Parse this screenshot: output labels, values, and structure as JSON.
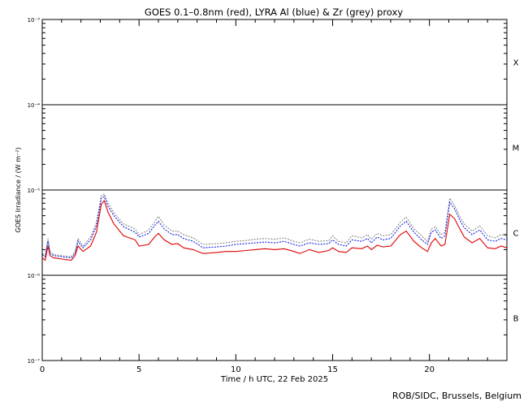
{
  "chart_data": {
    "type": "line",
    "title": "GOES 0.1–0.8nm (red), LYRA Al (blue) & Zr (grey) proxy",
    "xlabel": "Time / h UTC, 22 Feb 2025",
    "ylabel": "GOES Irradiance / (W m⁻²)",
    "xlim": [
      0,
      24
    ],
    "ylim": [
      1e-07,
      0.001
    ],
    "yscale": "log",
    "x_ticks": [
      0,
      5,
      10,
      15,
      20
    ],
    "y_ticks": [
      {
        "value": 0.001,
        "label": "10⁻³"
      },
      {
        "value": 0.0001,
        "label": "10⁻⁴"
      },
      {
        "value": 1e-05,
        "label": "10⁻⁵"
      },
      {
        "value": 1e-06,
        "label": "10⁻⁶"
      },
      {
        "value": 1e-07,
        "label": "10⁻⁷"
      }
    ],
    "flare_classes": [
      {
        "label": "X",
        "value": 0.000316
      },
      {
        "label": "M",
        "value": 3.16e-05
      },
      {
        "label": "C",
        "value": 3.16e-06
      },
      {
        "label": "B",
        "value": 3.16e-07
      }
    ],
    "class_boundaries": [
      0.0001,
      1e-05,
      1e-06
    ],
    "series": [
      {
        "name": "GOES 0.1–0.8nm",
        "color": "#e00000",
        "x": [
          0,
          0.15,
          0.3,
          0.4,
          0.6,
          1,
          1.5,
          1.7,
          1.85,
          2.1,
          2.5,
          2.8,
          3.05,
          3.2,
          3.4,
          3.7,
          4.2,
          4.8,
          5,
          5.5,
          5.8,
          6,
          6.3,
          6.7,
          7,
          7.3,
          7.8,
          8.3,
          9,
          9.5,
          10,
          10.5,
          11,
          11.5,
          12,
          12.5,
          13,
          13.3,
          13.8,
          14.3,
          14.8,
          15,
          15.3,
          15.7,
          16,
          16.5,
          16.8,
          17,
          17.3,
          17.6,
          18,
          18.5,
          18.8,
          19.2,
          19.6,
          19.9,
          20.1,
          20.3,
          20.6,
          20.8,
          21.05,
          21.3,
          21.6,
          21.8,
          22.2,
          22.6,
          23,
          23.4,
          23.7,
          24
        ],
        "y": [
          1.6e-06,
          1.5e-06,
          2.2e-06,
          1.7e-06,
          1.6e-06,
          1.55e-06,
          1.5e-06,
          1.7e-06,
          2.2e-06,
          1.9e-06,
          2.2e-06,
          3.2e-06,
          6.8e-06,
          7.5e-06,
          5.5e-06,
          4e-06,
          2.9e-06,
          2.6e-06,
          2.2e-06,
          2.3e-06,
          2.8e-06,
          3.1e-06,
          2.6e-06,
          2.3e-06,
          2.35e-06,
          2.1e-06,
          2e-06,
          1.8e-06,
          1.85e-06,
          1.9e-06,
          1.9e-06,
          1.95e-06,
          2e-06,
          2.05e-06,
          2e-06,
          2.05e-06,
          1.9e-06,
          1.8e-06,
          2e-06,
          1.85e-06,
          1.95e-06,
          2.1e-06,
          1.9e-06,
          1.85e-06,
          2.1e-06,
          2.05e-06,
          2.2e-06,
          2e-06,
          2.25e-06,
          2.15e-06,
          2.2e-06,
          3e-06,
          3.3e-06,
          2.5e-06,
          2.1e-06,
          1.9e-06,
          2.4e-06,
          2.7e-06,
          2.2e-06,
          2.3e-06,
          5.2e-06,
          4.6e-06,
          3.4e-06,
          2.8e-06,
          2.4e-06,
          2.7e-06,
          2.1e-06,
          2.05e-06,
          2.2e-06,
          2.1e-06
        ]
      },
      {
        "name": "LYRA Al",
        "color": "#1020e0",
        "x": [
          0,
          0.15,
          0.3,
          0.4,
          0.6,
          1,
          1.5,
          1.7,
          1.85,
          2.1,
          2.5,
          2.8,
          3.05,
          3.2,
          3.4,
          3.7,
          4.2,
          4.8,
          5,
          5.5,
          5.8,
          6,
          6.3,
          6.7,
          7,
          7.3,
          7.8,
          8.3,
          9,
          9.5,
          10,
          10.5,
          11,
          11.5,
          12,
          12.5,
          13,
          13.3,
          13.8,
          14.3,
          14.8,
          15,
          15.3,
          15.7,
          16,
          16.5,
          16.8,
          17,
          17.3,
          17.6,
          18,
          18.5,
          18.8,
          19.2,
          19.6,
          19.9,
          20.1,
          20.3,
          20.6,
          20.8,
          21.05,
          21.3,
          21.6,
          21.8,
          22.2,
          22.6,
          23,
          23.4,
          23.7,
          24
        ],
        "y": [
          1.75e-06,
          1.65e-06,
          2.5e-06,
          1.8e-06,
          1.7e-06,
          1.65e-06,
          1.6e-06,
          1.8e-06,
          2.5e-06,
          2.1e-06,
          2.6e-06,
          3.8e-06,
          8e-06,
          8.4e-06,
          6.4e-06,
          5e-06,
          3.7e-06,
          3.2e-06,
          2.8e-06,
          3.1e-06,
          3.8e-06,
          4.3e-06,
          3.5e-06,
          3e-06,
          3e-06,
          2.7e-06,
          2.5e-06,
          2.1e-06,
          2.15e-06,
          2.2e-06,
          2.3e-06,
          2.35e-06,
          2.4e-06,
          2.45e-06,
          2.4e-06,
          2.5e-06,
          2.3e-06,
          2.2e-06,
          2.4e-06,
          2.3e-06,
          2.35e-06,
          2.6e-06,
          2.3e-06,
          2.2e-06,
          2.6e-06,
          2.5e-06,
          2.7e-06,
          2.4e-06,
          2.8e-06,
          2.6e-06,
          2.7e-06,
          3.8e-06,
          4.3e-06,
          3.2e-06,
          2.6e-06,
          2.3e-06,
          3.2e-06,
          3.4e-06,
          2.7e-06,
          2.9e-06,
          7.2e-06,
          6e-06,
          4.3e-06,
          3.6e-06,
          3e-06,
          3.4e-06,
          2.6e-06,
          2.5e-06,
          2.7e-06,
          2.6e-06
        ]
      },
      {
        "name": "LYRA Zr",
        "color": "#888888",
        "x": [
          0,
          0.15,
          0.3,
          0.4,
          0.6,
          1,
          1.5,
          1.7,
          1.85,
          2.1,
          2.5,
          2.8,
          3.05,
          3.2,
          3.4,
          3.7,
          4.2,
          4.8,
          5,
          5.5,
          5.8,
          6,
          6.3,
          6.7,
          7,
          7.3,
          7.8,
          8.3,
          9,
          9.5,
          10,
          10.5,
          11,
          11.5,
          12,
          12.5,
          13,
          13.3,
          13.8,
          14.3,
          14.8,
          15,
          15.3,
          15.7,
          16,
          16.5,
          16.8,
          17,
          17.3,
          17.6,
          18,
          18.5,
          18.8,
          19.2,
          19.6,
          19.9,
          20.1,
          20.3,
          20.6,
          20.8,
          21.05,
          21.3,
          21.6,
          21.8,
          22.2,
          22.6,
          23,
          23.4,
          23.7,
          24
        ],
        "y": [
          1.8e-06,
          1.7e-06,
          2.7e-06,
          1.9e-06,
          1.75e-06,
          1.7e-06,
          1.65e-06,
          1.9e-06,
          2.7e-06,
          2.2e-06,
          2.8e-06,
          4.1e-06,
          8.6e-06,
          9e-06,
          7e-06,
          5.4e-06,
          4e-06,
          3.5e-06,
          3e-06,
          3.4e-06,
          4.2e-06,
          4.9e-06,
          3.9e-06,
          3.3e-06,
          3.3e-06,
          3e-06,
          2.75e-06,
          2.3e-06,
          2.35e-06,
          2.4e-06,
          2.5e-06,
          2.55e-06,
          2.65e-06,
          2.7e-06,
          2.65e-06,
          2.75e-06,
          2.5e-06,
          2.4e-06,
          2.65e-06,
          2.5e-06,
          2.55e-06,
          2.9e-06,
          2.5e-06,
          2.4e-06,
          2.9e-06,
          2.75e-06,
          3e-06,
          2.65e-06,
          3.1e-06,
          2.9e-06,
          3e-06,
          4.2e-06,
          4.8e-06,
          3.5e-06,
          2.9e-06,
          2.5e-06,
          3.5e-06,
          3.7e-06,
          3e-06,
          3.2e-06,
          8e-06,
          6.6e-06,
          4.7e-06,
          4e-06,
          3.3e-06,
          3.8e-06,
          2.9e-06,
          2.75e-06,
          3e-06,
          2.9e-06
        ]
      }
    ]
  },
  "credit": "ROB/SIDC, Brussels, Belgium"
}
